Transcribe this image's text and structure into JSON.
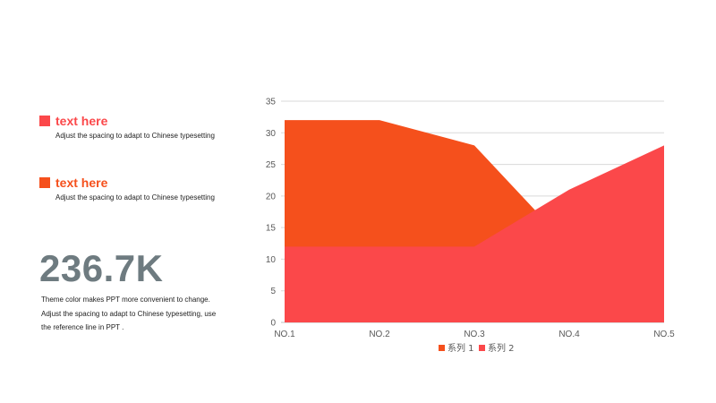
{
  "colors": {
    "series1": "#F5501C",
    "series2": "#FB484A",
    "number": "#6E7B80"
  },
  "items": [
    {
      "title": "text here",
      "desc": "Adjust the spacing to adapt to Chinese  typesetting",
      "color": "#FB484A"
    },
    {
      "title": "text here",
      "desc": "Adjust the spacing to adapt to Chinese  typesetting",
      "color": "#F5501C"
    }
  ],
  "stat": {
    "value": "236.7K",
    "lines": [
      "Theme color makes PPT more convenient  to change.",
      "Adjust the spacing to adapt to Chinese typesetting, use",
      "the reference line in PPT ."
    ]
  },
  "chart_data": {
    "type": "area",
    "categories": [
      "NO.1",
      "NO.2",
      "NO.3",
      "NO.4",
      "NO.5"
    ],
    "series": [
      {
        "name": "系列 1",
        "values": [
          32,
          32,
          28,
          12,
          12
        ],
        "color": "#F5501C"
      },
      {
        "name": "系列 2",
        "values": [
          12,
          12,
          12,
          21,
          28
        ],
        "color": "#FB484A"
      }
    ],
    "ylim": [
      0,
      35
    ],
    "yticks": [
      0,
      5,
      10,
      15,
      20,
      25,
      30,
      35
    ],
    "grid": true,
    "legend": "bottom"
  }
}
